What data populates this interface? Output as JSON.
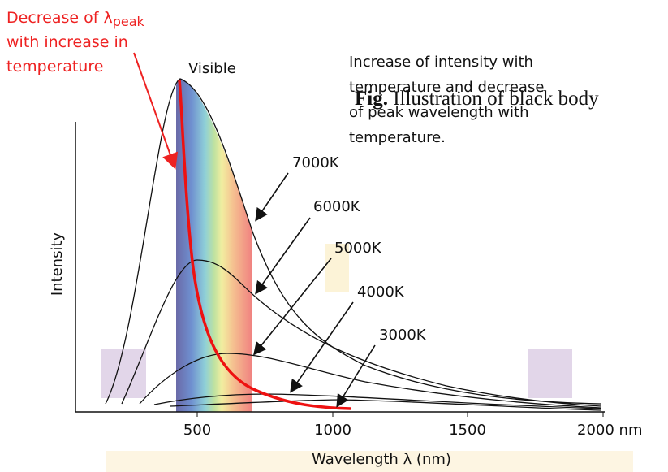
{
  "annotation": {
    "line1": "Decrease of λ",
    "subscript": "peak",
    "line2": "with increase in",
    "line3": "temperature"
  },
  "visible_label": "Visible",
  "note": [
    "Increase of intensity with",
    "temperature and decrease",
    "of peak wavelength with",
    "temperature."
  ],
  "caption": {
    "prefix": "Fig.",
    "text": "Illustration of black body"
  },
  "curves": [
    "7000K",
    "6000K",
    "5000K",
    "4000K",
    "3000K"
  ],
  "y_axis_label": "Intensity",
  "x_ticks": [
    "500",
    "1000",
    "1500",
    "2000 nm"
  ],
  "x_axis_label": "Wavelength λ (nm)"
}
